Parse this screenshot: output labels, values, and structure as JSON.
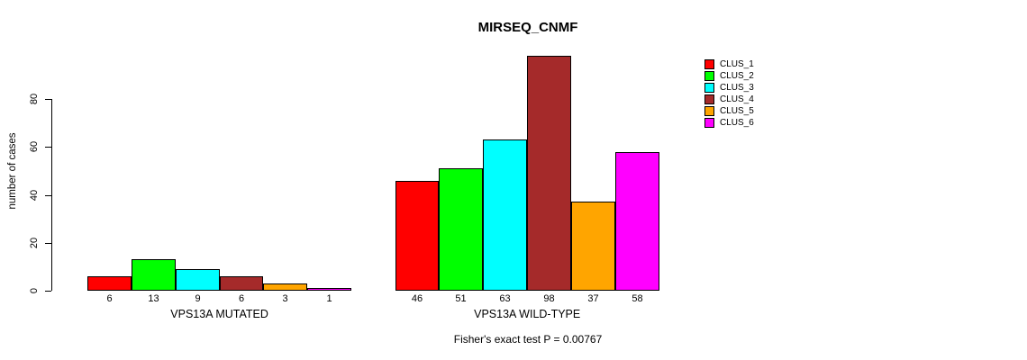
{
  "chart_data": {
    "type": "bar",
    "title": "MIRSEQ_CNMF",
    "ylabel": "number of cases",
    "caption": "Fisher's exact test P = 0.00767",
    "ylim": [
      0,
      100
    ],
    "yticks": [
      0,
      20,
      40,
      60,
      80
    ],
    "grid": false,
    "legend_position": "top-right-inside",
    "bar_value_labels_shown": true,
    "categories": [
      "VPS13A MUTATED",
      "VPS13A WILD-TYPE"
    ],
    "series": [
      {
        "name": "CLUS_1",
        "color": "#FF0000",
        "values": [
          6,
          46
        ]
      },
      {
        "name": "CLUS_2",
        "color": "#00FF00",
        "values": [
          13,
          51
        ]
      },
      {
        "name": "CLUS_3",
        "color": "#00FFFF",
        "values": [
          9,
          63
        ]
      },
      {
        "name": "CLUS_4",
        "color": "#A52A2A",
        "values": [
          6,
          98
        ]
      },
      {
        "name": "CLUS_5",
        "color": "#FFA500",
        "values": [
          3,
          37
        ]
      },
      {
        "name": "CLUS_6",
        "color": "#FF00FF",
        "values": [
          1,
          58
        ]
      }
    ]
  }
}
